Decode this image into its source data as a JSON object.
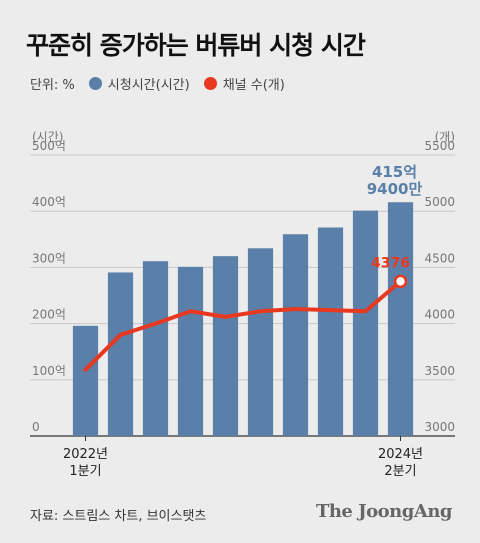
{
  "title": "꾸준히 증가하는 버튜버 시청 시간",
  "unit_label": "단위: %",
  "legend": {
    "bar_label": "시청시간(시간)",
    "line_label": "채널 수(개)"
  },
  "source": "자료: 스트림스 차트, 브이스탯츠",
  "brand": "The JoongAng",
  "chart_data": {
    "type": "bar",
    "categories": [
      "2022년 1분기",
      "",
      "",
      "",
      "",
      "",
      "",
      "",
      "",
      "2024년 2분기"
    ],
    "x_tick_labels": [
      {
        "line1": "2022년",
        "line2": "1분기"
      },
      {
        "line1": "2024년",
        "line2": "2분기"
      }
    ],
    "left_axis": {
      "label": "(시간)",
      "ticks": [
        "0",
        "100억",
        "200억",
        "300억",
        "400억",
        "500억"
      ],
      "range": [
        0,
        500
      ]
    },
    "right_axis": {
      "label": "(개)",
      "ticks": [
        "3000",
        "3500",
        "4000",
        "4500",
        "5000",
        "5500"
      ],
      "range": [
        3000,
        5500
      ]
    },
    "series": [
      {
        "name": "시청시간(시간)",
        "type": "bar",
        "axis": "left",
        "values": [
          196,
          291,
          311,
          301,
          320,
          334,
          359,
          371,
          401,
          415.94
        ]
      },
      {
        "name": "채널 수(개)",
        "type": "line",
        "axis": "right",
        "values": [
          3590,
          3900,
          4000,
          4110,
          4060,
          4110,
          4130,
          4120,
          4110,
          4376
        ]
      }
    ],
    "annotations": {
      "bar_last_line1": "415억",
      "bar_last_line2": "9400만",
      "line_last": "4376"
    },
    "grid": true,
    "colors": {
      "bar": "#5a7fa8",
      "line": "#e8381f",
      "grid": "#c8c8c8"
    }
  }
}
